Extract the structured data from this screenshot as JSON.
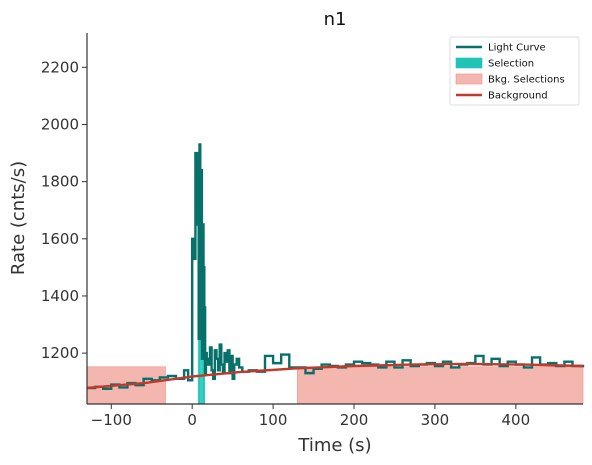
{
  "chart_data": {
    "type": "line",
    "title": "n1",
    "xlabel": "Time (s)",
    "ylabel": "Rate (cnts/s)",
    "xlim": [
      -130,
      483
    ],
    "ylim": [
      1022,
      2320
    ],
    "xticks": [
      -100,
      0,
      100,
      200,
      300,
      400
    ],
    "yticks": [
      1200,
      1400,
      1600,
      1800,
      2000,
      2200
    ],
    "xtick_labels": [
      "−100",
      "0",
      "100",
      "200",
      "300",
      "400"
    ],
    "ytick_labels": [
      "1200",
      "1400",
      "1600",
      "1800",
      "2000",
      "2200"
    ],
    "grid": false,
    "legend_position": "top-right",
    "colors": {
      "light_curve": "#07706a",
      "selection": "#1fc4b7",
      "bkg_selection_fill": "#f4b7b0",
      "bkg_selection_edge": "#ee8e86",
      "background": "#c0392b",
      "axis": "#333333"
    },
    "legend": [
      {
        "label": "Light Curve",
        "kind": "line",
        "color_key": "light_curve"
      },
      {
        "label": "Selection",
        "kind": "patch",
        "color_key": "selection"
      },
      {
        "label": "Bkg. Selections",
        "kind": "patch",
        "color_key": "bkg_selection_fill"
      },
      {
        "label": "Background",
        "kind": "line",
        "color_key": "background"
      }
    ],
    "bkg_selections": [
      [
        -130,
        -33
      ],
      [
        130,
        483
      ]
    ],
    "source_selection": [
      7,
      16
    ],
    "background_curve": {
      "x": [
        -130,
        -60,
        0,
        60,
        130,
        200,
        270,
        340,
        410,
        483
      ],
      "y": [
        1078,
        1095,
        1118,
        1134,
        1147,
        1155,
        1160,
        1162,
        1160,
        1155
      ]
    },
    "light_curve": {
      "edges": [
        -130,
        -120,
        -110,
        -100,
        -90,
        -80,
        -70,
        -60,
        -50,
        -40,
        -30,
        -20,
        -10,
        -5,
        0,
        2,
        4,
        6,
        7,
        8,
        9,
        10,
        11,
        12,
        13,
        14,
        15,
        16,
        17,
        18,
        20,
        22,
        24,
        26,
        28,
        30,
        32,
        34,
        36,
        38,
        40,
        42,
        44,
        46,
        48,
        50,
        52,
        55,
        58,
        62,
        70,
        80,
        90,
        100,
        110,
        120,
        130,
        140,
        150,
        160,
        170,
        180,
        190,
        200,
        210,
        220,
        230,
        240,
        250,
        260,
        270,
        280,
        290,
        300,
        310,
        320,
        330,
        340,
        350,
        360,
        370,
        380,
        390,
        400,
        410,
        420,
        430,
        440,
        450,
        460,
        470,
        483
      ],
      "values": [
        1078,
        1082,
        1075,
        1090,
        1080,
        1095,
        1088,
        1110,
        1105,
        1115,
        1120,
        1110,
        1140,
        1105,
        1600,
        1530,
        1900,
        1650,
        1870,
        1250,
        1930,
        1570,
        1840,
        1180,
        1650,
        1500,
        1360,
        1130,
        1200,
        1180,
        1160,
        1220,
        1140,
        1110,
        1210,
        1180,
        1140,
        1230,
        1160,
        1130,
        1200,
        1170,
        1210,
        1130,
        1190,
        1110,
        1160,
        1180,
        1150,
        1135,
        1140,
        1135,
        1190,
        1165,
        1195,
        1150,
        1150,
        1130,
        1145,
        1160,
        1155,
        1150,
        1160,
        1170,
        1165,
        1160,
        1150,
        1170,
        1150,
        1175,
        1155,
        1160,
        1165,
        1155,
        1170,
        1150,
        1160,
        1165,
        1190,
        1160,
        1180,
        1155,
        1170,
        1160,
        1150,
        1185,
        1160,
        1165,
        1155,
        1170,
        1155,
        1150
      ]
    }
  }
}
